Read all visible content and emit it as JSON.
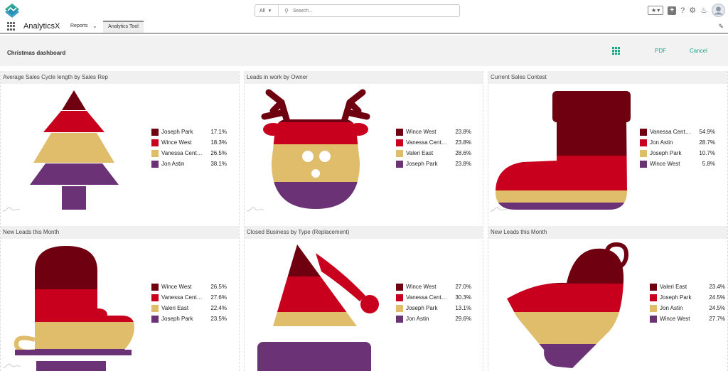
{
  "app": {
    "name": "AnalyticsX"
  },
  "search": {
    "scope": "All",
    "placeholder": "Search..."
  },
  "nav": {
    "reports_label": "Reports",
    "active_tab": "Analytics Tool"
  },
  "dashboard": {
    "title": "Christmas dashboard",
    "pdf_label": "PDF",
    "cancel_label": "Cancel"
  },
  "colors": {
    "dark_red": "#6e0010",
    "red": "#c8001e",
    "gold": "#dfbd6b",
    "purple": "#6b3375",
    "accent": "#1aa888"
  },
  "panels": [
    {
      "title": "Average Sales Cycle length by Sales Rep",
      "shape": "tree",
      "legend": [
        {
          "name": "Joseph Park",
          "pct": "17.1%",
          "color": "#6e0010"
        },
        {
          "name": "Wince West",
          "pct": "18.3%",
          "color": "#c8001e"
        },
        {
          "name": "Vanessa Centeno",
          "pct": "26.5%",
          "color": "#dfbd6b"
        },
        {
          "name": "Jon Astin",
          "pct": "38.1%",
          "color": "#6b3375"
        }
      ]
    },
    {
      "title": "Leads in work by Owner",
      "shape": "reindeer",
      "legend": [
        {
          "name": "Wince West",
          "pct": "23.8%",
          "color": "#6e0010"
        },
        {
          "name": "Vanessa Centeno",
          "pct": "23.8%",
          "color": "#c8001e"
        },
        {
          "name": "Valeri East",
          "pct": "28.6%",
          "color": "#dfbd6b"
        },
        {
          "name": "Joseph Park",
          "pct": "23.8%",
          "color": "#6b3375"
        }
      ]
    },
    {
      "title": "Current Sales Contest",
      "shape": "stocking",
      "legend": [
        {
          "name": "Vanessa Centeno",
          "pct": "54.9%",
          "color": "#6e0010"
        },
        {
          "name": "Jon Astin",
          "pct": "28.7%",
          "color": "#c8001e"
        },
        {
          "name": "Joseph Park",
          "pct": "10.7%",
          "color": "#dfbd6b"
        },
        {
          "name": "Wince West",
          "pct": "5.8%",
          "color": "#6b3375"
        }
      ]
    },
    {
      "title": "New Leads this Month",
      "shape": "mitten",
      "legend": [
        {
          "name": "Wince West",
          "pct": "26.5%",
          "color": "#6e0010"
        },
        {
          "name": "Vanessa Centeno",
          "pct": "27.6%",
          "color": "#c8001e"
        },
        {
          "name": "Valeri East",
          "pct": "22.4%",
          "color": "#dfbd6b"
        },
        {
          "name": "Joseph Park",
          "pct": "23.5%",
          "color": "#6b3375"
        }
      ]
    },
    {
      "title": "Closed Business by Type (Replacement)",
      "shape": "hat",
      "legend": [
        {
          "name": "Wince West",
          "pct": "27.0%",
          "color": "#6e0010"
        },
        {
          "name": "Vanessa Centeno",
          "pct": "30.3%",
          "color": "#c8001e"
        },
        {
          "name": "Joseph Park",
          "pct": "13.1%",
          "color": "#dfbd6b"
        },
        {
          "name": "Jon Astin",
          "pct": "29.6%",
          "color": "#6b3375"
        }
      ]
    },
    {
      "title": "New Leads this Month",
      "shape": "bell",
      "legend": [
        {
          "name": "Valeri East",
          "pct": "23.4%",
          "color": "#6e0010"
        },
        {
          "name": "Joseph Park",
          "pct": "24.5%",
          "color": "#c8001e"
        },
        {
          "name": "Jon Astin",
          "pct": "24.5%",
          "color": "#dfbd6b"
        },
        {
          "name": "Wince West",
          "pct": "27.7%",
          "color": "#6b3375"
        }
      ]
    }
  ]
}
